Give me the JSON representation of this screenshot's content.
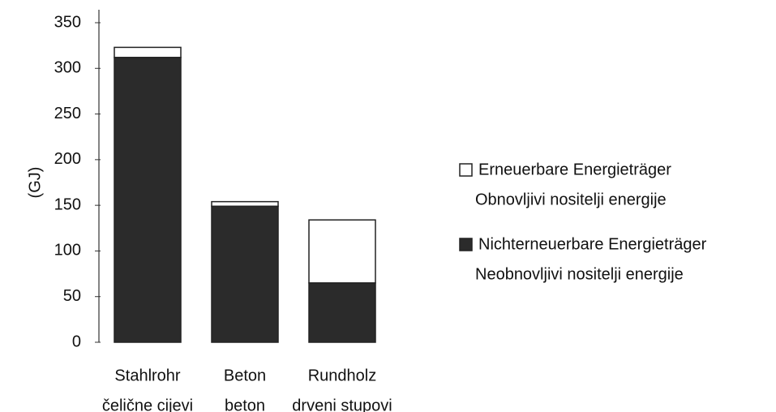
{
  "chart_data": {
    "type": "stacked_bar",
    "y_label": "(GJ)",
    "categories": [
      [
        "Stahlrohr",
        "čelične cijevi"
      ],
      [
        "Beton",
        "beton"
      ],
      [
        "Rundholz",
        "drveni stupovi"
      ]
    ],
    "series": [
      {
        "name": [
          "Nichterneuerbare Energieträger",
          "Neobnovljivi nositelji energije"
        ],
        "color": "#2b2b2b",
        "values": [
          312,
          149,
          65
        ]
      },
      {
        "name": [
          "Erneuerbare Energieträger",
          "Obnovljivi nositelji energije"
        ],
        "color": "#ffffff",
        "values": [
          11,
          5,
          69
        ]
      }
    ],
    "ylim": [
      0,
      350
    ],
    "yticks": [
      0,
      50,
      100,
      150,
      200,
      250,
      300,
      350
    ],
    "grid": false,
    "legend": "right"
  }
}
